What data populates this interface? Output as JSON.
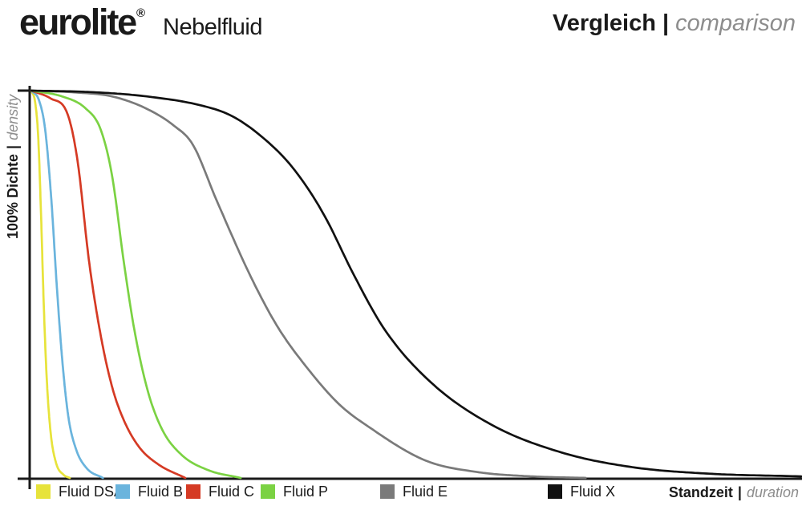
{
  "header": {
    "brand": "eurolite",
    "brand_reg": "®",
    "product": "Nebelfluid",
    "title_bold": "Vergleich",
    "title_sep": "|",
    "title_italic": "comparison"
  },
  "axis_labels": {
    "y_bold": "100% Dichte",
    "y_sep": "|",
    "y_italic": "density",
    "x_bold": "Standzeit",
    "x_sep": "|",
    "x_italic": "duration"
  },
  "colors": {
    "text": "#1a1a1a",
    "muted_italic": "#8d8d8d",
    "axis": "#1a1a1a",
    "background": "#ffffff"
  },
  "chart_data": {
    "type": "line",
    "title": "Vergleich | comparison",
    "subtitle": "eurolite Nebelfluid",
    "xlabel": "Standzeit | duration",
    "ylabel": "100% Dichte | density",
    "x_range": [
      0,
      1
    ],
    "y_range": [
      0,
      1
    ],
    "grid": false,
    "axis_ticks": "no numeric ticks; single 100% marker at top of y-axis",
    "legend_position": "bottom",
    "note": "Relative density decay over standing time; axes are unlabeled relative scales. Points are [x_fraction_of_axis, density_fraction].",
    "series": [
      {
        "name": "Fluid DSA",
        "color": "#e7e33b",
        "points": [
          [
            0,
            1
          ],
          [
            0.005,
            0.97
          ],
          [
            0.009,
            0.88
          ],
          [
            0.013,
            0.66
          ],
          [
            0.016,
            0.46
          ],
          [
            0.02,
            0.26
          ],
          [
            0.025,
            0.12
          ],
          [
            0.032,
            0.04
          ],
          [
            0.042,
            0.008
          ],
          [
            0.05,
            0
          ]
        ]
      },
      {
        "name": "Fluid B",
        "color": "#6ab4dd",
        "points": [
          [
            0,
            1
          ],
          [
            0.01,
            0.975
          ],
          [
            0.018,
            0.9
          ],
          [
            0.026,
            0.72
          ],
          [
            0.033,
            0.5
          ],
          [
            0.04,
            0.31
          ],
          [
            0.048,
            0.16
          ],
          [
            0.058,
            0.075
          ],
          [
            0.072,
            0.025
          ],
          [
            0.093,
            0
          ]
        ]
      },
      {
        "name": "Fluid C",
        "color": "#d53a24",
        "points": [
          [
            0,
            1
          ],
          [
            0.025,
            0.98
          ],
          [
            0.047,
            0.94
          ],
          [
            0.06,
            0.82
          ],
          [
            0.075,
            0.56
          ],
          [
            0.09,
            0.37
          ],
          [
            0.105,
            0.235
          ],
          [
            0.12,
            0.15
          ],
          [
            0.14,
            0.08
          ],
          [
            0.165,
            0.035
          ],
          [
            0.2,
            0
          ]
        ]
      },
      {
        "name": "Fluid P",
        "color": "#7bd243",
        "points": [
          [
            0,
            1
          ],
          [
            0.04,
            0.985
          ],
          [
            0.07,
            0.955
          ],
          [
            0.09,
            0.9
          ],
          [
            0.105,
            0.78
          ],
          [
            0.12,
            0.56
          ],
          [
            0.135,
            0.37
          ],
          [
            0.152,
            0.22
          ],
          [
            0.17,
            0.125
          ],
          [
            0.195,
            0.06
          ],
          [
            0.23,
            0.02
          ],
          [
            0.272,
            0
          ]
        ]
      },
      {
        "name": "Fluid E",
        "color": "#7a7a7a",
        "points": [
          [
            0,
            1
          ],
          [
            0.06,
            0.995
          ],
          [
            0.105,
            0.985
          ],
          [
            0.148,
            0.955
          ],
          [
            0.185,
            0.91
          ],
          [
            0.21,
            0.86
          ],
          [
            0.24,
            0.72
          ],
          [
            0.285,
            0.52
          ],
          [
            0.32,
            0.39
          ],
          [
            0.356,
            0.29
          ],
          [
            0.4,
            0.19
          ],
          [
            0.436,
            0.135
          ],
          [
            0.512,
            0.045
          ],
          [
            0.58,
            0.015
          ],
          [
            0.65,
            0.004
          ],
          [
            0.72,
            0
          ]
        ]
      },
      {
        "name": "Fluid X",
        "color": "#111111",
        "points": [
          [
            0,
            1
          ],
          [
            0.08,
            0.996
          ],
          [
            0.15,
            0.985
          ],
          [
            0.22,
            0.962
          ],
          [
            0.26,
            0.935
          ],
          [
            0.3,
            0.88
          ],
          [
            0.34,
            0.8
          ],
          [
            0.38,
            0.68
          ],
          [
            0.42,
            0.52
          ],
          [
            0.46,
            0.38
          ],
          [
            0.52,
            0.245
          ],
          [
            0.6,
            0.135
          ],
          [
            0.69,
            0.065
          ],
          [
            0.78,
            0.028
          ],
          [
            0.88,
            0.011
          ],
          [
            1.0,
            0.004
          ]
        ]
      }
    ]
  }
}
